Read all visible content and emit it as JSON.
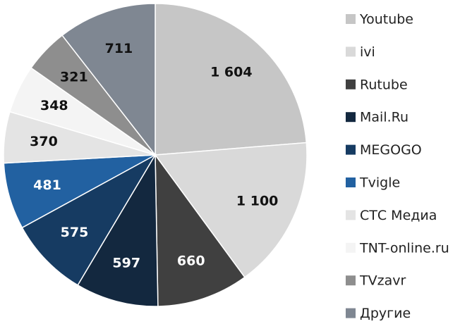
{
  "chart_data": {
    "type": "pie",
    "categories": [
      "Youtube",
      "ivi",
      "Rutube",
      "Mail.Ru",
      "MEGOGO",
      "Tvigle",
      "СТС Медиа",
      "TNT-online.ru",
      "TVzavr",
      "Другие"
    ],
    "values": [
      1604,
      1100,
      660,
      597,
      575,
      481,
      370,
      348,
      321,
      711
    ],
    "value_labels": [
      "1 604",
      "1 100",
      "660",
      "597",
      "575",
      "481",
      "370",
      "348",
      "321",
      "711"
    ],
    "colors": [
      "#c6c6c6",
      "#d9d9d9",
      "#404040",
      "#13283f",
      "#163b62",
      "#2261a1",
      "#e4e4e4",
      "#f4f4f4",
      "#8e8e8e",
      "#7f8792"
    ],
    "legend": "right"
  }
}
